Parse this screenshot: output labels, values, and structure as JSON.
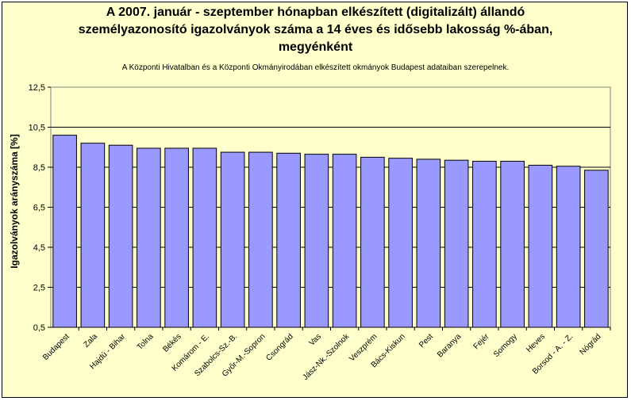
{
  "chart_data": {
    "type": "bar",
    "title_lines": [
      "A 2007. január - szeptember hónapban elkészített (digitalizált) állandó",
      "személyazonosító igazolványok száma a 14 éves és idősebb lakosság %-ában,",
      "megyénként"
    ],
    "subtitle": "A  Központi Hivatalban és a Központi Okmányirodában elkészített  okmányok Budapest adataiban szerepelnek.",
    "ylabel": "Igazolványok arányszáma [%]",
    "xlabel": "",
    "ylim": [
      0.5,
      12.5
    ],
    "yticks": [
      "0,5",
      "2,5",
      "4,5",
      "6,5",
      "8,5",
      "10,5",
      "12,5"
    ],
    "ytick_values": [
      0.5,
      2.5,
      4.5,
      6.5,
      8.5,
      10.5,
      12.5
    ],
    "grid": true,
    "bar_color": "#9999ff",
    "plot_bg": "#ffffcc",
    "categories": [
      "Budapest",
      "Zala",
      "Hajdú - Bihar",
      "Tolna",
      "Békés",
      "Komárom - E.",
      "Szabolcs-Sz.-B.",
      "Győr-M.-Sopron",
      "Csongrád",
      "Vas",
      "Jász-Nk.-Szolnok",
      "Veszprém",
      "Bács-Kiskun",
      "Pest",
      "Baranya",
      "Fejér",
      "Somogy",
      "Heves",
      "Borsod - A. - Z.",
      "Nógrád"
    ],
    "values": [
      10.1,
      9.7,
      9.6,
      9.45,
      9.45,
      9.45,
      9.25,
      9.25,
      9.2,
      9.15,
      9.15,
      9.0,
      8.95,
      8.9,
      8.85,
      8.8,
      8.8,
      8.6,
      8.55,
      8.35
    ]
  }
}
